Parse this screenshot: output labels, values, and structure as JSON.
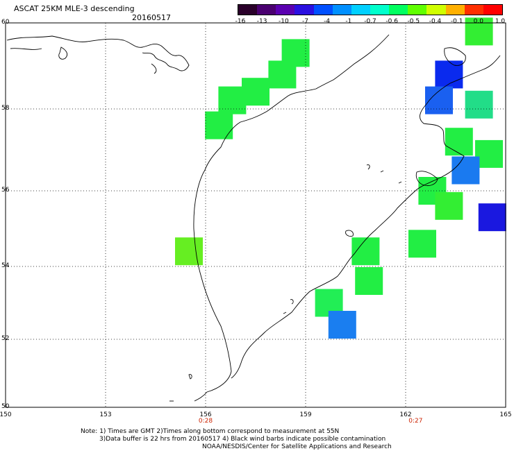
{
  "header": {
    "title": "ASCAT 25KM MLE-3 descending",
    "date": "20160517"
  },
  "colorbar": {
    "labels": [
      "-16",
      "-13",
      "-10",
      "-7",
      "-4",
      "-1",
      "-0.7",
      "-0.6",
      "-0.5",
      "-0.4",
      "-0.1",
      "0.0",
      "1.0"
    ],
    "colors": [
      "#2a002a",
      "#4a0070",
      "#5a00b0",
      "#2a10e0",
      "#0050ff",
      "#0090ff",
      "#00d0ff",
      "#00ffcc",
      "#00ff60",
      "#60ff00",
      "#d0ff00",
      "#ffb000",
      "#ff3000",
      "#ff0000"
    ]
  },
  "axes": {
    "lat_labels": [
      "60",
      "58",
      "56",
      "54",
      "52",
      "50"
    ],
    "lon_labels": [
      "150",
      "153",
      "156",
      "159",
      "162",
      "165"
    ],
    "time_labels": [
      "0:28",
      "0:27"
    ]
  },
  "footer": {
    "note1": "Note: 1) Times are GMT 2)Times along bottom correspond to measurement at 55N",
    "note2": "3)Data buffer is 22 hrs from 20160517 4) Black wind barbs indicate possible contamination",
    "note3": "NOAA/NESDIS/Center for Satellite Applications and Research"
  },
  "map_cells": [
    {
      "lon": 158.7,
      "lat": 59.3,
      "color": "#22ee44"
    },
    {
      "lon": 158.3,
      "lat": 58.8,
      "color": "#22ee44"
    },
    {
      "lon": 157.5,
      "lat": 58.4,
      "color": "#22ee44"
    },
    {
      "lon": 156.8,
      "lat": 58.2,
      "color": "#22ee44"
    },
    {
      "lon": 156.4,
      "lat": 57.6,
      "color": "#22ee44"
    },
    {
      "lon": 164.2,
      "lat": 59.8,
      "color": "#33ee33"
    },
    {
      "lon": 163.3,
      "lat": 58.8,
      "color": "#0a2aee"
    },
    {
      "lon": 163.0,
      "lat": 58.2,
      "color": "#1a60f0"
    },
    {
      "lon": 164.2,
      "lat": 58.1,
      "color": "#22dd88"
    },
    {
      "lon": 163.6,
      "lat": 57.2,
      "color": "#22ee44"
    },
    {
      "lon": 164.5,
      "lat": 56.9,
      "color": "#22ee44"
    },
    {
      "lon": 163.8,
      "lat": 56.5,
      "color": "#1a7af0"
    },
    {
      "lon": 162.8,
      "lat": 56.0,
      "color": "#22ee44"
    },
    {
      "lon": 163.3,
      "lat": 55.6,
      "color": "#33ee33"
    },
    {
      "lon": 164.6,
      "lat": 55.3,
      "color": "#1a18e0"
    },
    {
      "lon": 162.5,
      "lat": 54.6,
      "color": "#22ee44"
    },
    {
      "lon": 160.8,
      "lat": 54.4,
      "color": "#22ee44"
    },
    {
      "lon": 160.9,
      "lat": 53.6,
      "color": "#22ee44"
    },
    {
      "lon": 159.7,
      "lat": 53.0,
      "color": "#22ee55"
    },
    {
      "lon": 160.1,
      "lat": 52.4,
      "color": "#1a7ef0"
    },
    {
      "lon": 155.5,
      "lat": 54.4,
      "color": "#66ee22"
    }
  ]
}
